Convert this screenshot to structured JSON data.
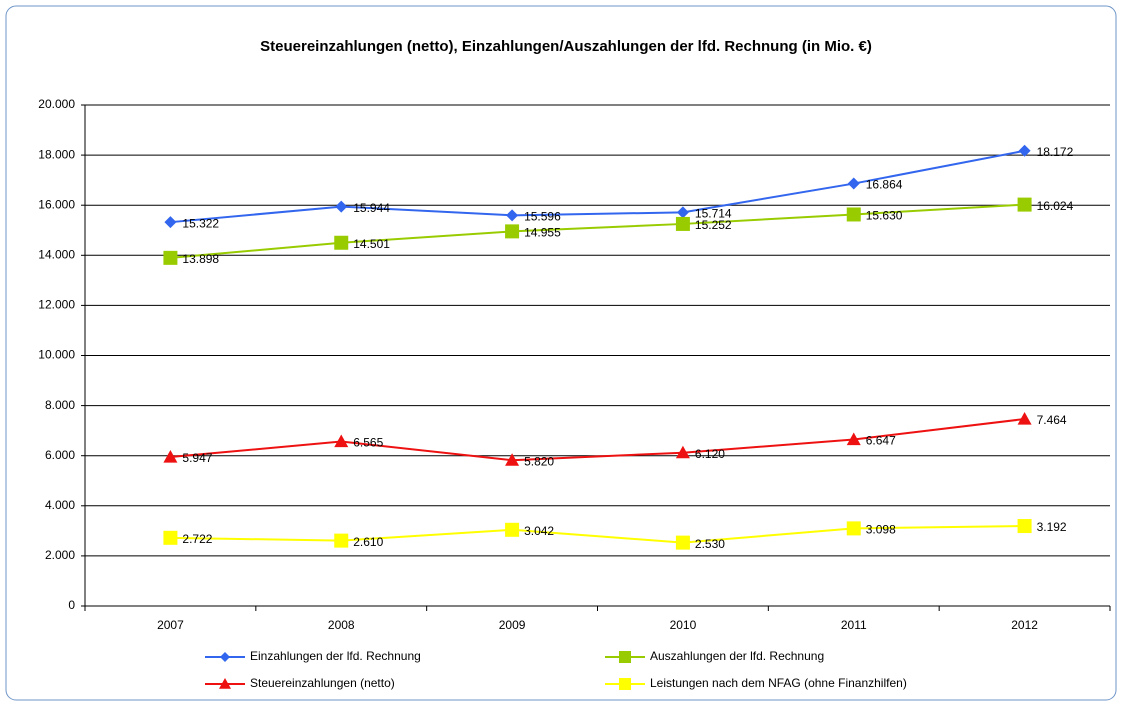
{
  "chart_data": {
    "type": "line",
    "title": "Steuereinzahlungen (netto), Einzahlungen/Auszahlungen der lfd. Rechnung (in Mio. €)",
    "categories": [
      "2007",
      "2008",
      "2009",
      "2010",
      "2011",
      "2012"
    ],
    "series": [
      {
        "name": "Einzahlungen der lfd. Rechnung",
        "color": "#3366ee",
        "marker": "diamond",
        "values": [
          15322,
          15944,
          15596,
          15714,
          16864,
          18172
        ],
        "value_labels": [
          "15.322",
          "15.944",
          "15.596",
          "15.714",
          "16.864",
          "18.172"
        ]
      },
      {
        "name": "Auszahlungen der lfd. Rechnung",
        "color": "#99cc00",
        "marker": "square",
        "values": [
          13898,
          14501,
          14955,
          15252,
          15630,
          16024
        ],
        "value_labels": [
          "13.898",
          "14.501",
          "14.955",
          "15.252",
          "15.630",
          "16.024"
        ]
      },
      {
        "name": "Steuereinzahlungen (netto)",
        "color": "#ee1111",
        "marker": "triangle",
        "values": [
          5947,
          6565,
          5820,
          6120,
          6647,
          7464
        ],
        "value_labels": [
          "5.947",
          "6.565",
          "5.820",
          "6.120",
          "6.647",
          "7.464"
        ]
      },
      {
        "name": "Leistungen nach dem NFAG (ohne Finanzhilfen)",
        "color": "#ffff00",
        "marker": "square",
        "values": [
          2722,
          2610,
          3042,
          2530,
          3098,
          3192
        ],
        "value_labels": [
          "2.722",
          "2.610",
          "3.042",
          "2.530",
          "3.098",
          "3.192"
        ]
      }
    ],
    "ylim": [
      0,
      20000
    ],
    "yticks": [
      0,
      {
        "value": 2000,
        "label": "2.000"
      },
      {
        "value": 4000,
        "label": "4.000"
      },
      {
        "value": 6000,
        "label": "6.000"
      },
      {
        "value": 8000,
        "label": "8.000"
      },
      {
        "value": 10000,
        "label": "10.000"
      },
      {
        "value": 12000,
        "label": "12.000"
      },
      {
        "value": 14000,
        "label": "14.000"
      },
      {
        "value": 16000,
        "label": "16.000"
      },
      {
        "value": 18000,
        "label": "18.000"
      },
      {
        "value": 20000,
        "label": "20.000"
      }
    ],
    "grid": true,
    "legend": "bottom"
  }
}
